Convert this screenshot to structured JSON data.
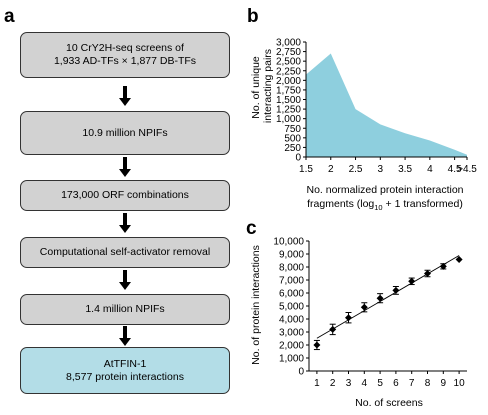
{
  "panel_a": {
    "label": "a",
    "steps": [
      {
        "line1": "10 CrY2H-seq screens of",
        "line2": "1,933 AD-TFs × 1,877 DB-TFs"
      },
      {
        "line1": "10.9 million NPIFs",
        "line2": ""
      },
      {
        "line1": "173,000 ORF combinations",
        "line2": ""
      },
      {
        "line1": "Computational self-activator removal",
        "line2": ""
      },
      {
        "line1": "1.4 million NPIFs",
        "line2": ""
      },
      {
        "line1": "AtTFIN-1",
        "line2": "8,577 protein interactions"
      }
    ],
    "colors": {
      "box": "#d2d2d2",
      "final_box": "#b3dde7",
      "arrow": "#000000"
    }
  },
  "panel_b": {
    "label": "b",
    "ylabel_line1": "No. of unique",
    "ylabel_line2": "interacting pairs",
    "xlabel_line1": "No. normalized protein interaction",
    "xlabel_line2_pre": "fragments (log",
    "xlabel_line2_sub": "10",
    "xlabel_line2_post": " + 1 transformed)"
  },
  "panel_c": {
    "label": "c",
    "ylabel": "No. of protein interactions",
    "xlabel": "No. of screens"
  },
  "chart_data": [
    {
      "type": "area",
      "x": [
        1.5,
        2,
        2.5,
        3,
        3.5,
        4,
        4.5,
        4.75
      ],
      "values": [
        2150,
        2700,
        1250,
        850,
        620,
        430,
        190,
        60
      ],
      "xticks": [
        "1.5",
        "2",
        "2.5",
        "3",
        "3.5",
        "4",
        "4.5",
        ">4.5"
      ],
      "yticks": [
        "0",
        "250",
        "500",
        "750",
        "1,000",
        "1,250",
        "1,500",
        "1,750",
        "2,000",
        "2,250",
        "2,500",
        "2,750",
        "3,000"
      ],
      "xlim": [
        1.5,
        4.75
      ],
      "ylim": [
        0,
        3000
      ],
      "color": "#8ecfde"
    },
    {
      "type": "line",
      "x": [
        1,
        2,
        3,
        4,
        5,
        6,
        7,
        8,
        9,
        10
      ],
      "values": [
        2000,
        3200,
        4100,
        4900,
        5600,
        6200,
        6900,
        7500,
        8050,
        8577
      ],
      "errors": [
        350,
        400,
        400,
        350,
        350,
        300,
        250,
        250,
        200,
        0
      ],
      "xticks": [
        "1",
        "2",
        "3",
        "4",
        "5",
        "6",
        "7",
        "8",
        "9",
        "10"
      ],
      "yticks": [
        "0",
        "1,000",
        "2,000",
        "3,000",
        "4,000",
        "5,000",
        "6,000",
        "7,000",
        "8,000",
        "9,000",
        "10,000"
      ],
      "xlim": [
        0.5,
        10.5
      ],
      "ylim": [
        0,
        10000
      ],
      "fit_line": true
    }
  ]
}
